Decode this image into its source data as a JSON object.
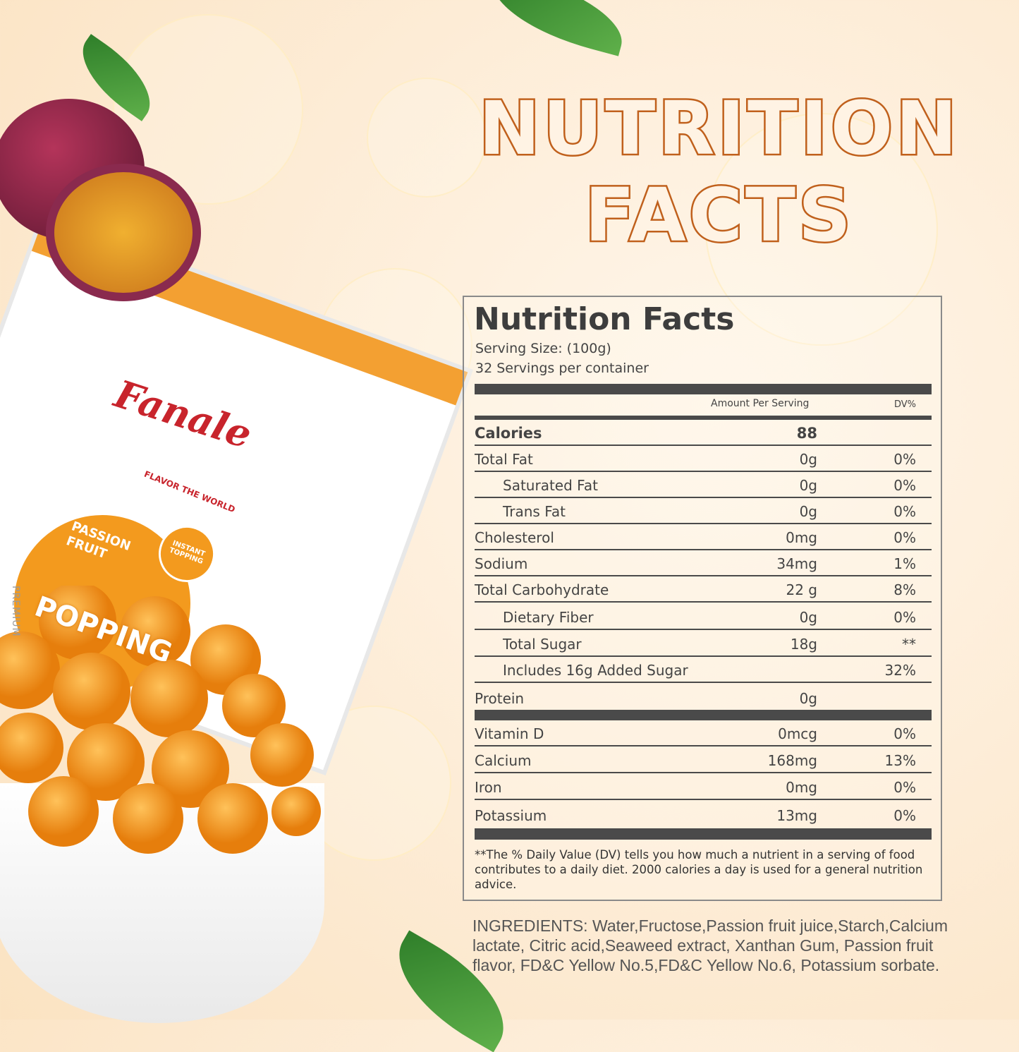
{
  "headline": {
    "line1": "NUTRITION",
    "line2": "FACTS"
  },
  "brand": {
    "logo": "Fanale",
    "tagline": "FLAVOR THE WORLD",
    "flavor": "PASSION FRUIT",
    "product": "POPPING",
    "badge": "INSTANT TOPPING",
    "side": "PREMIUM"
  },
  "label": {
    "title": "Nutrition Facts",
    "serving_size": "Serving Size:  (100g)",
    "servings": "32 Servings per container",
    "amount_header": "Amount Per Serving",
    "dv_header": "DV%",
    "rows": [
      {
        "name": "Calories",
        "amount": "88",
        "dv": ""
      },
      {
        "name": "Total Fat",
        "amount": "0g",
        "dv": "0%"
      },
      {
        "name": "Saturated Fat",
        "amount": "0g",
        "dv": "0%"
      },
      {
        "name": "Trans Fat",
        "amount": "0g",
        "dv": "0%"
      },
      {
        "name": "Cholesterol",
        "amount": "0mg",
        "dv": "0%"
      },
      {
        "name": "Sodium",
        "amount": "34mg",
        "dv": "1%"
      },
      {
        "name": "Total Carbohydrate",
        "amount": "22 g",
        "dv": "8%"
      },
      {
        "name": "Dietary Fiber",
        "amount": "0g",
        "dv": "0%"
      },
      {
        "name": "Total Sugar",
        "amount": "18g",
        "dv": "**"
      },
      {
        "name": "Includes 16g Added Sugar",
        "amount": "",
        "dv": "32%"
      },
      {
        "name": "Protein",
        "amount": "0g",
        "dv": ""
      },
      {
        "name": "Vitamin D",
        "amount": "0mcg",
        "dv": "0%"
      },
      {
        "name": "Calcium",
        "amount": "168mg",
        "dv": "13%"
      },
      {
        "name": "Iron",
        "amount": "0mg",
        "dv": "0%"
      },
      {
        "name": "Potassium",
        "amount": "13mg",
        "dv": "0%"
      }
    ],
    "footnote": "**The % Daily Value (DV) tells you how much a nutrient in a serving of food contributes to a daily diet. 2000 calories a  day is used for a general nutrition advice."
  },
  "ingredients": "INGREDIENTS: Water,Fructose,Passion fruit juice,Starch,Calcium lactate, Citric acid,Seaweed extract, Xanthan Gum, Passion fruit flavor, FD&C Yellow No.5,FD&C Yellow No.6, Potassium sorbate.",
  "colors": {
    "headline_stroke": "#c0601c",
    "label_text": "#444444",
    "ball": "#f39a1e",
    "logo": "#c8242c"
  }
}
